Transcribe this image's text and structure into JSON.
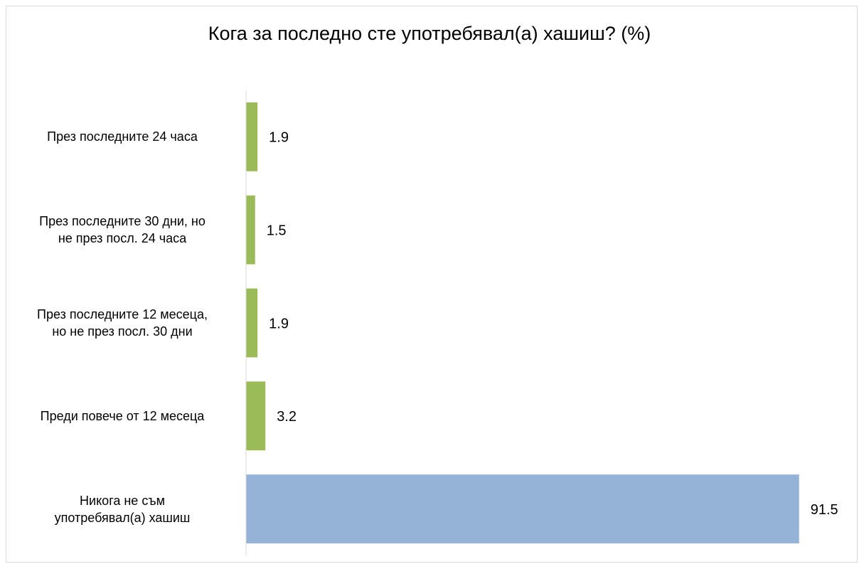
{
  "chart_data": {
    "type": "hbar",
    "title": "Кога за последно сте употребявал(а) хашиш? (%)",
    "categories": [
      "През последните 24 часа",
      "През последните 30 дни, но\nне през посл. 24 часа",
      "През последните 12 месеца,\nно не през посл. 30 дни",
      "Преди повече от 12 месеца",
      "Никога не съм\nупотребявал(а) хашиш"
    ],
    "values": [
      1.9,
      1.5,
      1.9,
      3.2,
      91.5
    ],
    "colors": [
      "#9bbb59",
      "#9bbb59",
      "#9bbb59",
      "#9bbb59",
      "#95b3d7"
    ],
    "xlim": [
      0,
      100
    ]
  }
}
